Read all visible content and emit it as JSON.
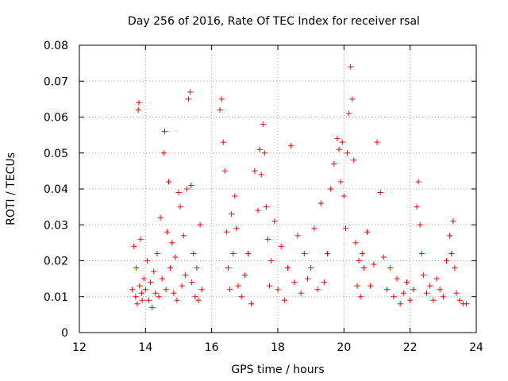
{
  "chart_data": {
    "type": "scatter",
    "title": "Day 256 of 2016, Rate Of TEC Index for receiver rsal",
    "xlabel": "GPS time / hours",
    "ylabel": "ROTI / TECUs",
    "xlim": [
      12,
      24
    ],
    "ylim": [
      0,
      0.08
    ],
    "grid": true,
    "marker": "+",
    "series_color": "#ff0000",
    "x_ticks": [
      "12",
      "14",
      "16",
      "18",
      "20",
      "22",
      "24"
    ],
    "y_ticks": [
      "0",
      "0.01",
      "0.02",
      "0.03",
      "0.04",
      "0.05",
      "0.06",
      "0.07",
      "0.08"
    ],
    "series": [
      {
        "name": "ROTI",
        "x": [
          13.6,
          13.65,
          13.7,
          13.72,
          13.75,
          13.78,
          13.8,
          13.82,
          13.85,
          13.88,
          13.9,
          13.95,
          14.0,
          14.05,
          14.1,
          14.15,
          14.2,
          14.25,
          14.3,
          14.35,
          14.4,
          14.45,
          14.5,
          14.55,
          14.58,
          14.62,
          14.65,
          14.7,
          14.75,
          14.8,
          14.85,
          14.9,
          14.95,
          15.0,
          15.05,
          15.1,
          15.15,
          15.2,
          15.25,
          15.3,
          15.35,
          15.38,
          15.4,
          15.45,
          15.5,
          15.55,
          15.6,
          15.65,
          15.7,
          16.25,
          16.3,
          16.35,
          16.4,
          16.45,
          16.5,
          16.55,
          16.6,
          16.65,
          16.7,
          16.75,
          16.8,
          16.9,
          17.0,
          17.1,
          17.2,
          17.3,
          17.4,
          17.45,
          17.5,
          17.55,
          17.6,
          17.65,
          17.7,
          17.75,
          17.8,
          17.9,
          18.0,
          18.1,
          18.2,
          18.3,
          18.4,
          18.5,
          18.6,
          18.7,
          18.8,
          18.9,
          19.0,
          19.1,
          19.2,
          19.3,
          19.4,
          19.5,
          19.6,
          19.7,
          19.8,
          19.85,
          19.9,
          19.95,
          20.0,
          20.05,
          20.1,
          20.15,
          20.2,
          20.25,
          20.3,
          20.35,
          20.4,
          20.45,
          20.5,
          20.55,
          20.6,
          20.7,
          20.8,
          20.9,
          21.0,
          21.1,
          21.2,
          21.3,
          21.4,
          21.5,
          21.6,
          21.7,
          21.8,
          21.9,
          22.0,
          22.1,
          22.2,
          22.25,
          22.3,
          22.35,
          22.4,
          22.5,
          22.6,
          22.7,
          22.8,
          22.9,
          23.0,
          23.1,
          23.2,
          23.25,
          23.3,
          23.35,
          23.4,
          23.5,
          23.6,
          23.7
        ],
        "y": [
          0.012,
          0.024,
          0.01,
          0.018,
          0.008,
          0.062,
          0.064,
          0.013,
          0.026,
          0.011,
          0.009,
          0.015,
          0.012,
          0.02,
          0.009,
          0.014,
          0.007,
          0.017,
          0.011,
          0.022,
          0.01,
          0.032,
          0.015,
          0.05,
          0.056,
          0.012,
          0.028,
          0.042,
          0.018,
          0.025,
          0.011,
          0.021,
          0.009,
          0.039,
          0.035,
          0.013,
          0.027,
          0.016,
          0.04,
          0.065,
          0.067,
          0.041,
          0.014,
          0.022,
          0.01,
          0.018,
          0.009,
          0.03,
          0.012,
          0.062,
          0.065,
          0.053,
          0.045,
          0.028,
          0.018,
          0.012,
          0.033,
          0.022,
          0.038,
          0.029,
          0.013,
          0.01,
          0.016,
          0.022,
          0.008,
          0.045,
          0.034,
          0.051,
          0.044,
          0.058,
          0.05,
          0.035,
          0.026,
          0.013,
          0.02,
          0.031,
          0.012,
          0.024,
          0.009,
          0.018,
          0.052,
          0.014,
          0.027,
          0.011,
          0.022,
          0.015,
          0.018,
          0.029,
          0.012,
          0.036,
          0.014,
          0.022,
          0.04,
          0.047,
          0.054,
          0.051,
          0.042,
          0.053,
          0.038,
          0.029,
          0.05,
          0.061,
          0.074,
          0.065,
          0.048,
          0.025,
          0.013,
          0.02,
          0.01,
          0.022,
          0.018,
          0.028,
          0.013,
          0.019,
          0.053,
          0.039,
          0.021,
          0.012,
          0.018,
          0.01,
          0.015,
          0.008,
          0.011,
          0.014,
          0.009,
          0.012,
          0.035,
          0.042,
          0.03,
          0.022,
          0.016,
          0.011,
          0.013,
          0.009,
          0.015,
          0.012,
          0.01,
          0.02,
          0.027,
          0.022,
          0.031,
          0.018,
          0.011,
          0.009,
          0.008,
          0.008
        ]
      }
    ]
  }
}
